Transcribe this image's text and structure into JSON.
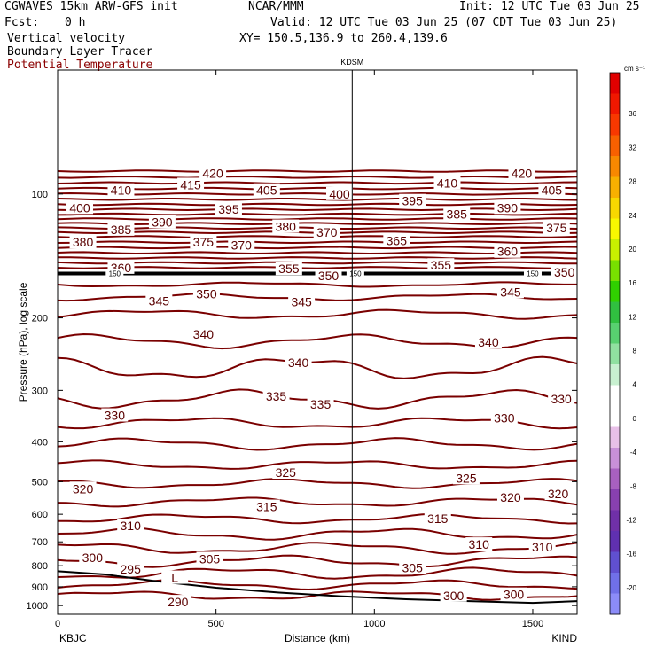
{
  "header": {
    "model": "CGWAVES 15km ARW-GFS init",
    "org": "NCAR/MMM",
    "init": "Init: 12 UTC Tue 03 Jun 25",
    "fcst_label": "Fcst:",
    "fcst_value": "0 h",
    "valid": "Valid: 12 UTC Tue 03 Jun 25 (07 CDT Tue 03 Jun 25)",
    "field1": "Vertical velocity",
    "xy": "XY= 150.5,136.9 to 260.4,139.6",
    "field2": "Boundary Layer Tracer",
    "field3": "Potential Temperature"
  },
  "colors": {
    "contour": "#7a0000",
    "theta_label": "#8b0000",
    "pbl": "#000000"
  },
  "chart_data": {
    "type": "contour",
    "station_mark": "KDSM",
    "xlabel": "Distance (km)",
    "ylabel": "Pressure (hPa), log scale",
    "x_start_label": "KBJC",
    "x_end_label": "KIND",
    "xlim": [
      0,
      1640
    ],
    "ylim_hpa": [
      1050,
      50
    ],
    "y_scale": "log",
    "station_x_km": 930,
    "x_ticks": [
      {
        "value": 0,
        "label": "0"
      },
      {
        "value": 500,
        "label": "500"
      },
      {
        "value": 1000,
        "label": "1000"
      },
      {
        "value": 1500,
        "label": "1500"
      }
    ],
    "y_ticks": [
      {
        "value": 100,
        "label": "100"
      },
      {
        "value": 200,
        "label": "200"
      },
      {
        "value": 300,
        "label": "300"
      },
      {
        "value": 400,
        "label": "400"
      },
      {
        "value": 500,
        "label": "500"
      },
      {
        "value": 600,
        "label": "600"
      },
      {
        "value": 700,
        "label": "700"
      },
      {
        "value": 800,
        "label": "800"
      },
      {
        "value": 900,
        "label": "900"
      },
      {
        "value": 1000,
        "label": "1000"
      }
    ],
    "theta_contours_stratosphere": [
      {
        "p": 88
      },
      {
        "p": 91
      },
      {
        "p": 94
      },
      {
        "p": 97
      },
      {
        "p": 100
      },
      {
        "p": 103
      },
      {
        "p": 106
      },
      {
        "p": 109
      },
      {
        "p": 112
      },
      {
        "p": 115
      },
      {
        "p": 118
      },
      {
        "p": 121
      },
      {
        "p": 124
      },
      {
        "p": 127
      },
      {
        "p": 131
      },
      {
        "p": 135
      },
      {
        "p": 139
      },
      {
        "p": 143
      },
      {
        "p": 147
      },
      {
        "p": 151
      }
    ],
    "tracer_line_p": 156,
    "theta_contours_troposphere": [
      {
        "p": 166,
        "amp": 2
      },
      {
        "p": 178,
        "amp": 3
      },
      {
        "p": 196,
        "amp": 4
      },
      {
        "p": 228,
        "amp": 6
      },
      {
        "p": 265,
        "amp": 10
      },
      {
        "p": 315,
        "amp": 8
      },
      {
        "p": 360,
        "amp": 5
      },
      {
        "p": 405,
        "amp": 5
      },
      {
        "p": 455,
        "amp": 4
      },
      {
        "p": 505,
        "amp": 4
      },
      {
        "p": 560,
        "amp": 4
      },
      {
        "p": 615,
        "amp": 4
      },
      {
        "p": 670,
        "amp": 5
      },
      {
        "p": 725,
        "amp": 5
      },
      {
        "p": 780,
        "amp": 5
      },
      {
        "p": 835,
        "amp": 5
      },
      {
        "p": 890,
        "amp": 4
      },
      {
        "p": 945,
        "amp": 4
      }
    ],
    "contour_labels": [
      {
        "text": "420",
        "x": 490,
        "p": 89
      },
      {
        "text": "420",
        "x": 1465,
        "p": 89
      },
      {
        "text": "415",
        "x": 420,
        "p": 95
      },
      {
        "text": "410",
        "x": 200,
        "p": 98
      },
      {
        "text": "410",
        "x": 1230,
        "p": 94
      },
      {
        "text": "405",
        "x": 660,
        "p": 98
      },
      {
        "text": "405",
        "x": 1560,
        "p": 98
      },
      {
        "text": "400",
        "x": 70,
        "p": 108
      },
      {
        "text": "400",
        "x": 890,
        "p": 100
      },
      {
        "text": "395",
        "x": 540,
        "p": 109
      },
      {
        "text": "395",
        "x": 1120,
        "p": 104
      },
      {
        "text": "390",
        "x": 330,
        "p": 117
      },
      {
        "text": "390",
        "x": 1420,
        "p": 108
      },
      {
        "text": "385",
        "x": 200,
        "p": 122
      },
      {
        "text": "385",
        "x": 1260,
        "p": 112
      },
      {
        "text": "380",
        "x": 720,
        "p": 120
      },
      {
        "text": "380",
        "x": 80,
        "p": 131
      },
      {
        "text": "375",
        "x": 460,
        "p": 131
      },
      {
        "text": "375",
        "x": 1575,
        "p": 121
      },
      {
        "text": "370",
        "x": 580,
        "p": 133
      },
      {
        "text": "370",
        "x": 850,
        "p": 124
      },
      {
        "text": "365",
        "x": 1070,
        "p": 130
      },
      {
        "text": "360",
        "x": 1420,
        "p": 138
      },
      {
        "text": "360",
        "x": 200,
        "p": 151
      },
      {
        "text": "355",
        "x": 730,
        "p": 152
      },
      {
        "text": "355",
        "x": 1210,
        "p": 149
      },
      {
        "text": "350",
        "x": 855,
        "p": 158
      },
      {
        "text": "350",
        "x": 1600,
        "p": 155
      },
      {
        "text": "345",
        "x": 320,
        "p": 182
      },
      {
        "text": "350",
        "x": 470,
        "p": 175
      },
      {
        "text": "345",
        "x": 770,
        "p": 183
      },
      {
        "text": "345",
        "x": 1430,
        "p": 173
      },
      {
        "text": "340",
        "x": 460,
        "p": 219
      },
      {
        "text": "340",
        "x": 760,
        "p": 257
      },
      {
        "text": "340",
        "x": 1360,
        "p": 229
      },
      {
        "text": "335",
        "x": 690,
        "p": 310
      },
      {
        "text": "335",
        "x": 830,
        "p": 324
      },
      {
        "text": "330",
        "x": 180,
        "p": 345
      },
      {
        "text": "330",
        "x": 1410,
        "p": 350
      },
      {
        "text": "330",
        "x": 1590,
        "p": 315
      },
      {
        "text": "325",
        "x": 720,
        "p": 475
      },
      {
        "text": "325",
        "x": 1290,
        "p": 490
      },
      {
        "text": "320",
        "x": 80,
        "p": 520
      },
      {
        "text": "320",
        "x": 1430,
        "p": 545
      },
      {
        "text": "320",
        "x": 1580,
        "p": 535
      },
      {
        "text": "315",
        "x": 660,
        "p": 575
      },
      {
        "text": "315",
        "x": 1200,
        "p": 615
      },
      {
        "text": "310",
        "x": 230,
        "p": 640
      },
      {
        "text": "310",
        "x": 1330,
        "p": 710
      },
      {
        "text": "310",
        "x": 1530,
        "p": 720
      },
      {
        "text": "305",
        "x": 480,
        "p": 770
      },
      {
        "text": "305",
        "x": 1120,
        "p": 810
      },
      {
        "text": "300",
        "x": 110,
        "p": 765
      },
      {
        "text": "300",
        "x": 1250,
        "p": 945
      },
      {
        "text": "300",
        "x": 1440,
        "p": 940
      },
      {
        "text": "295",
        "x": 230,
        "p": 815
      },
      {
        "text": "L",
        "x": 370,
        "p": 855
      },
      {
        "text": "290",
        "x": 380,
        "p": 980
      }
    ],
    "tracer_labels": [
      {
        "text": "150",
        "x": 180,
        "p": 156
      },
      {
        "text": "150",
        "x": 940,
        "p": 156
      },
      {
        "text": "150",
        "x": 1500,
        "p": 156
      }
    ],
    "terrain": [
      {
        "x": 0,
        "p": 825
      },
      {
        "x": 150,
        "p": 840
      },
      {
        "x": 300,
        "p": 870
      },
      {
        "x": 500,
        "p": 905
      },
      {
        "x": 700,
        "p": 930
      },
      {
        "x": 900,
        "p": 950
      },
      {
        "x": 1100,
        "p": 965
      },
      {
        "x": 1300,
        "p": 975
      },
      {
        "x": 1500,
        "p": 985
      },
      {
        "x": 1640,
        "p": 975
      }
    ],
    "colorbar": {
      "units": "cm s⁻¹",
      "levels": [
        "36",
        "32",
        "28",
        "24",
        "20",
        "16",
        "12",
        "8",
        "4",
        "0",
        "-4",
        "-8",
        "-12",
        "-16",
        "-20"
      ],
      "colors": [
        "#e00000",
        "#f01800",
        "#f83800",
        "#f86000",
        "#f88800",
        "#f8b000",
        "#f8d800",
        "#f8f800",
        "#c8f000",
        "#78e000",
        "#30d000",
        "#30c040",
        "#58d070",
        "#90e0a0",
        "#c8f0d0",
        "#ffffff",
        "#ffffff",
        "#e8c0e8",
        "#c890d8",
        "#a860c0",
        "#8840b0",
        "#7030a8",
        "#6030b0",
        "#6050d0",
        "#7070e8",
        "#8c8cf8"
      ]
    }
  }
}
